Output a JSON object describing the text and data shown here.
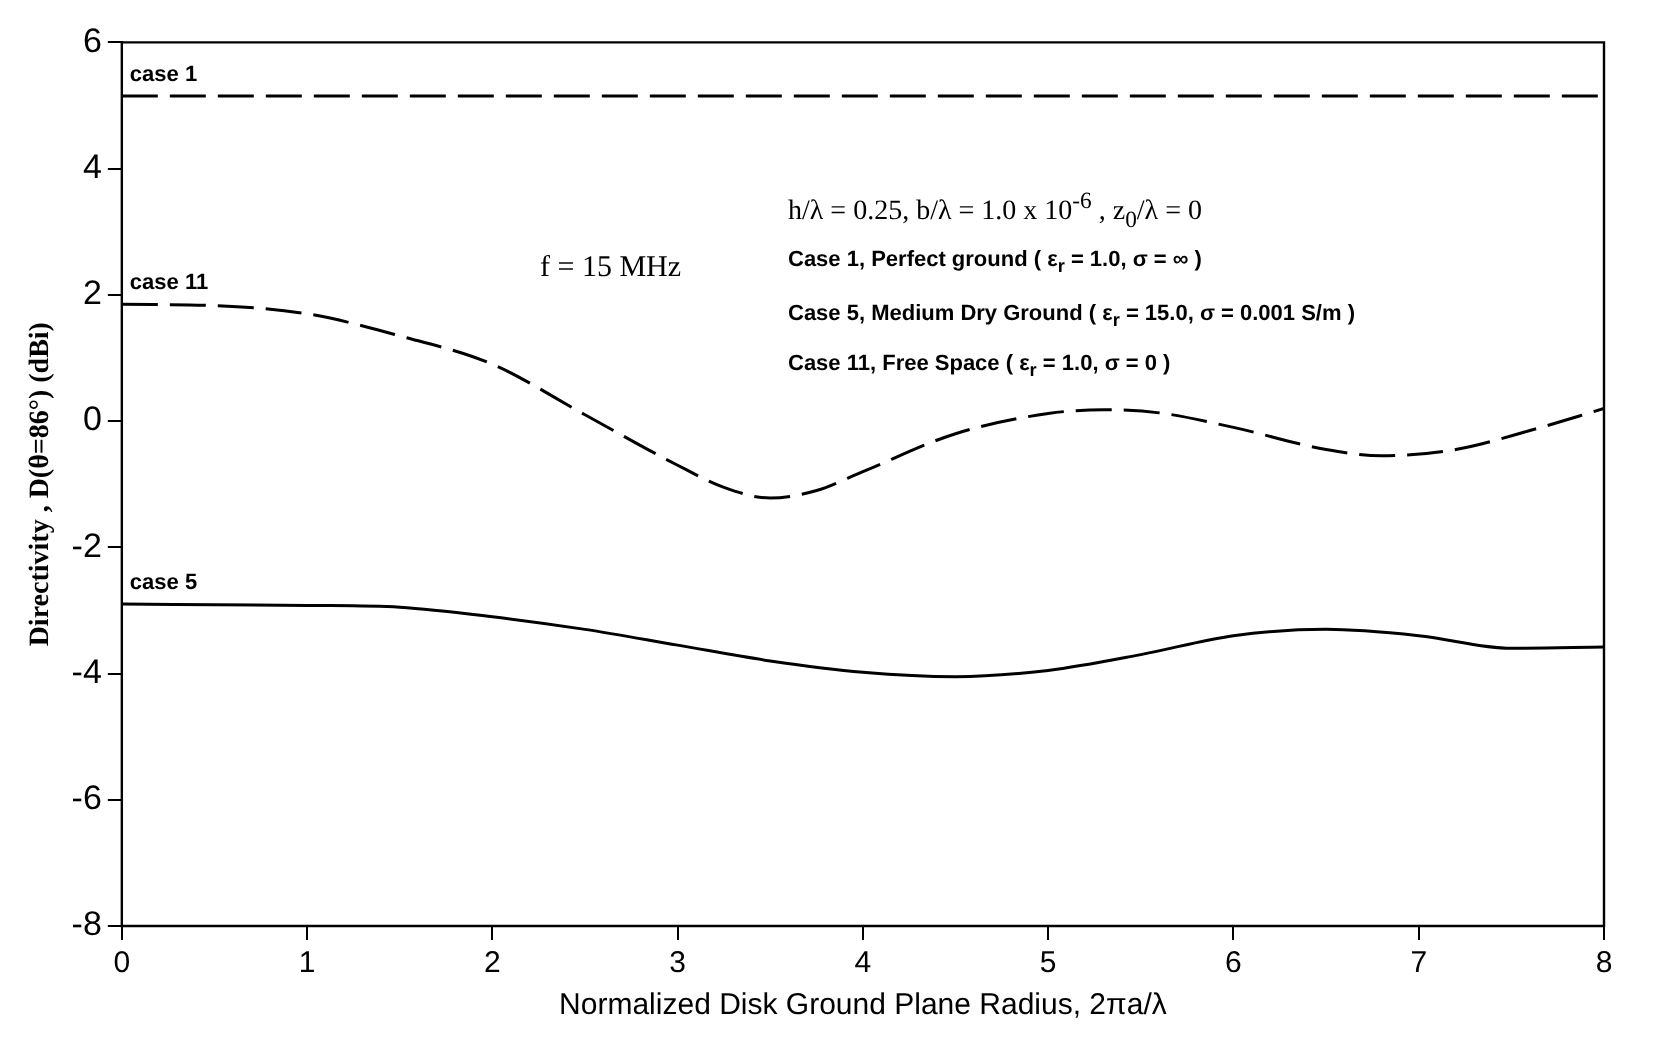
{
  "chart_data": {
    "type": "line",
    "xlabel": "Normalized Disk Ground Plane Radius, 2πa/λ",
    "ylabel": "Directivity , D(θ=86°) (dBi)",
    "xlim": [
      0,
      8
    ],
    "xticks": [
      0,
      1,
      2,
      3,
      4,
      5,
      6,
      7,
      8
    ],
    "ylim": [
      -8,
      6
    ],
    "yticks": [
      -8,
      -6,
      -4,
      -2,
      0,
      2,
      4,
      6
    ],
    "grid": false,
    "legend": false,
    "marker": "none",
    "annotations": [
      "f = 15 MHz",
      "h/λ = 0.25,  b/λ = 1.0 x 10$^{-6}$ ,   z$_{0}$/λ = 0",
      "Case 1, Perfect ground  ( ε$_{r}$ = 1.0,  σ =  ∞  )",
      "Case 5, Medium Dry Ground (  ε$_{r}$ = 15.0,  σ = 0.001 S/m )",
      "Case 11, Free Space  (  ε$_{r}$ = 1.0,  σ = 0 )",
      {
        "text": "case 1",
        "y": 5.15
      },
      {
        "text": "case 11",
        "y": 1.85
      },
      {
        "text": "case 5",
        "y": -2.9
      }
    ],
    "series": [
      {
        "color": "#000000",
        "line_style": "dashed",
        "x": [
          0,
          8
        ],
        "values": [
          5.15,
          5.15
        ]
      },
      {
        "color": "#000000",
        "line_style": "dashed",
        "x": [
          0,
          0.5,
          1,
          1.5,
          2,
          2.5,
          3,
          3.25,
          3.5,
          3.75,
          4,
          4.5,
          5,
          5.3,
          5.6,
          6,
          6.5,
          6.8,
          7.2,
          7.6,
          8
        ],
        "values": [
          1.85,
          1.83,
          1.7,
          1.35,
          0.9,
          0.1,
          -0.7,
          -1.05,
          -1.22,
          -1.1,
          -0.8,
          -0.2,
          0.12,
          0.18,
          0.13,
          -0.1,
          -0.45,
          -0.55,
          -0.45,
          -0.15,
          0.2
        ]
      },
      {
        "color": "#000000",
        "line_style": "solid",
        "x": [
          0,
          1,
          1.5,
          2,
          2.5,
          3,
          3.5,
          4,
          4.5,
          5,
          5.5,
          6,
          6.5,
          7,
          7.5,
          8
        ],
        "values": [
          -2.9,
          -2.92,
          -2.95,
          -3.1,
          -3.3,
          -3.55,
          -3.8,
          -3.98,
          -4.05,
          -3.95,
          -3.7,
          -3.4,
          -3.3,
          -3.4,
          -3.6,
          -3.58
        ]
      }
    ]
  }
}
